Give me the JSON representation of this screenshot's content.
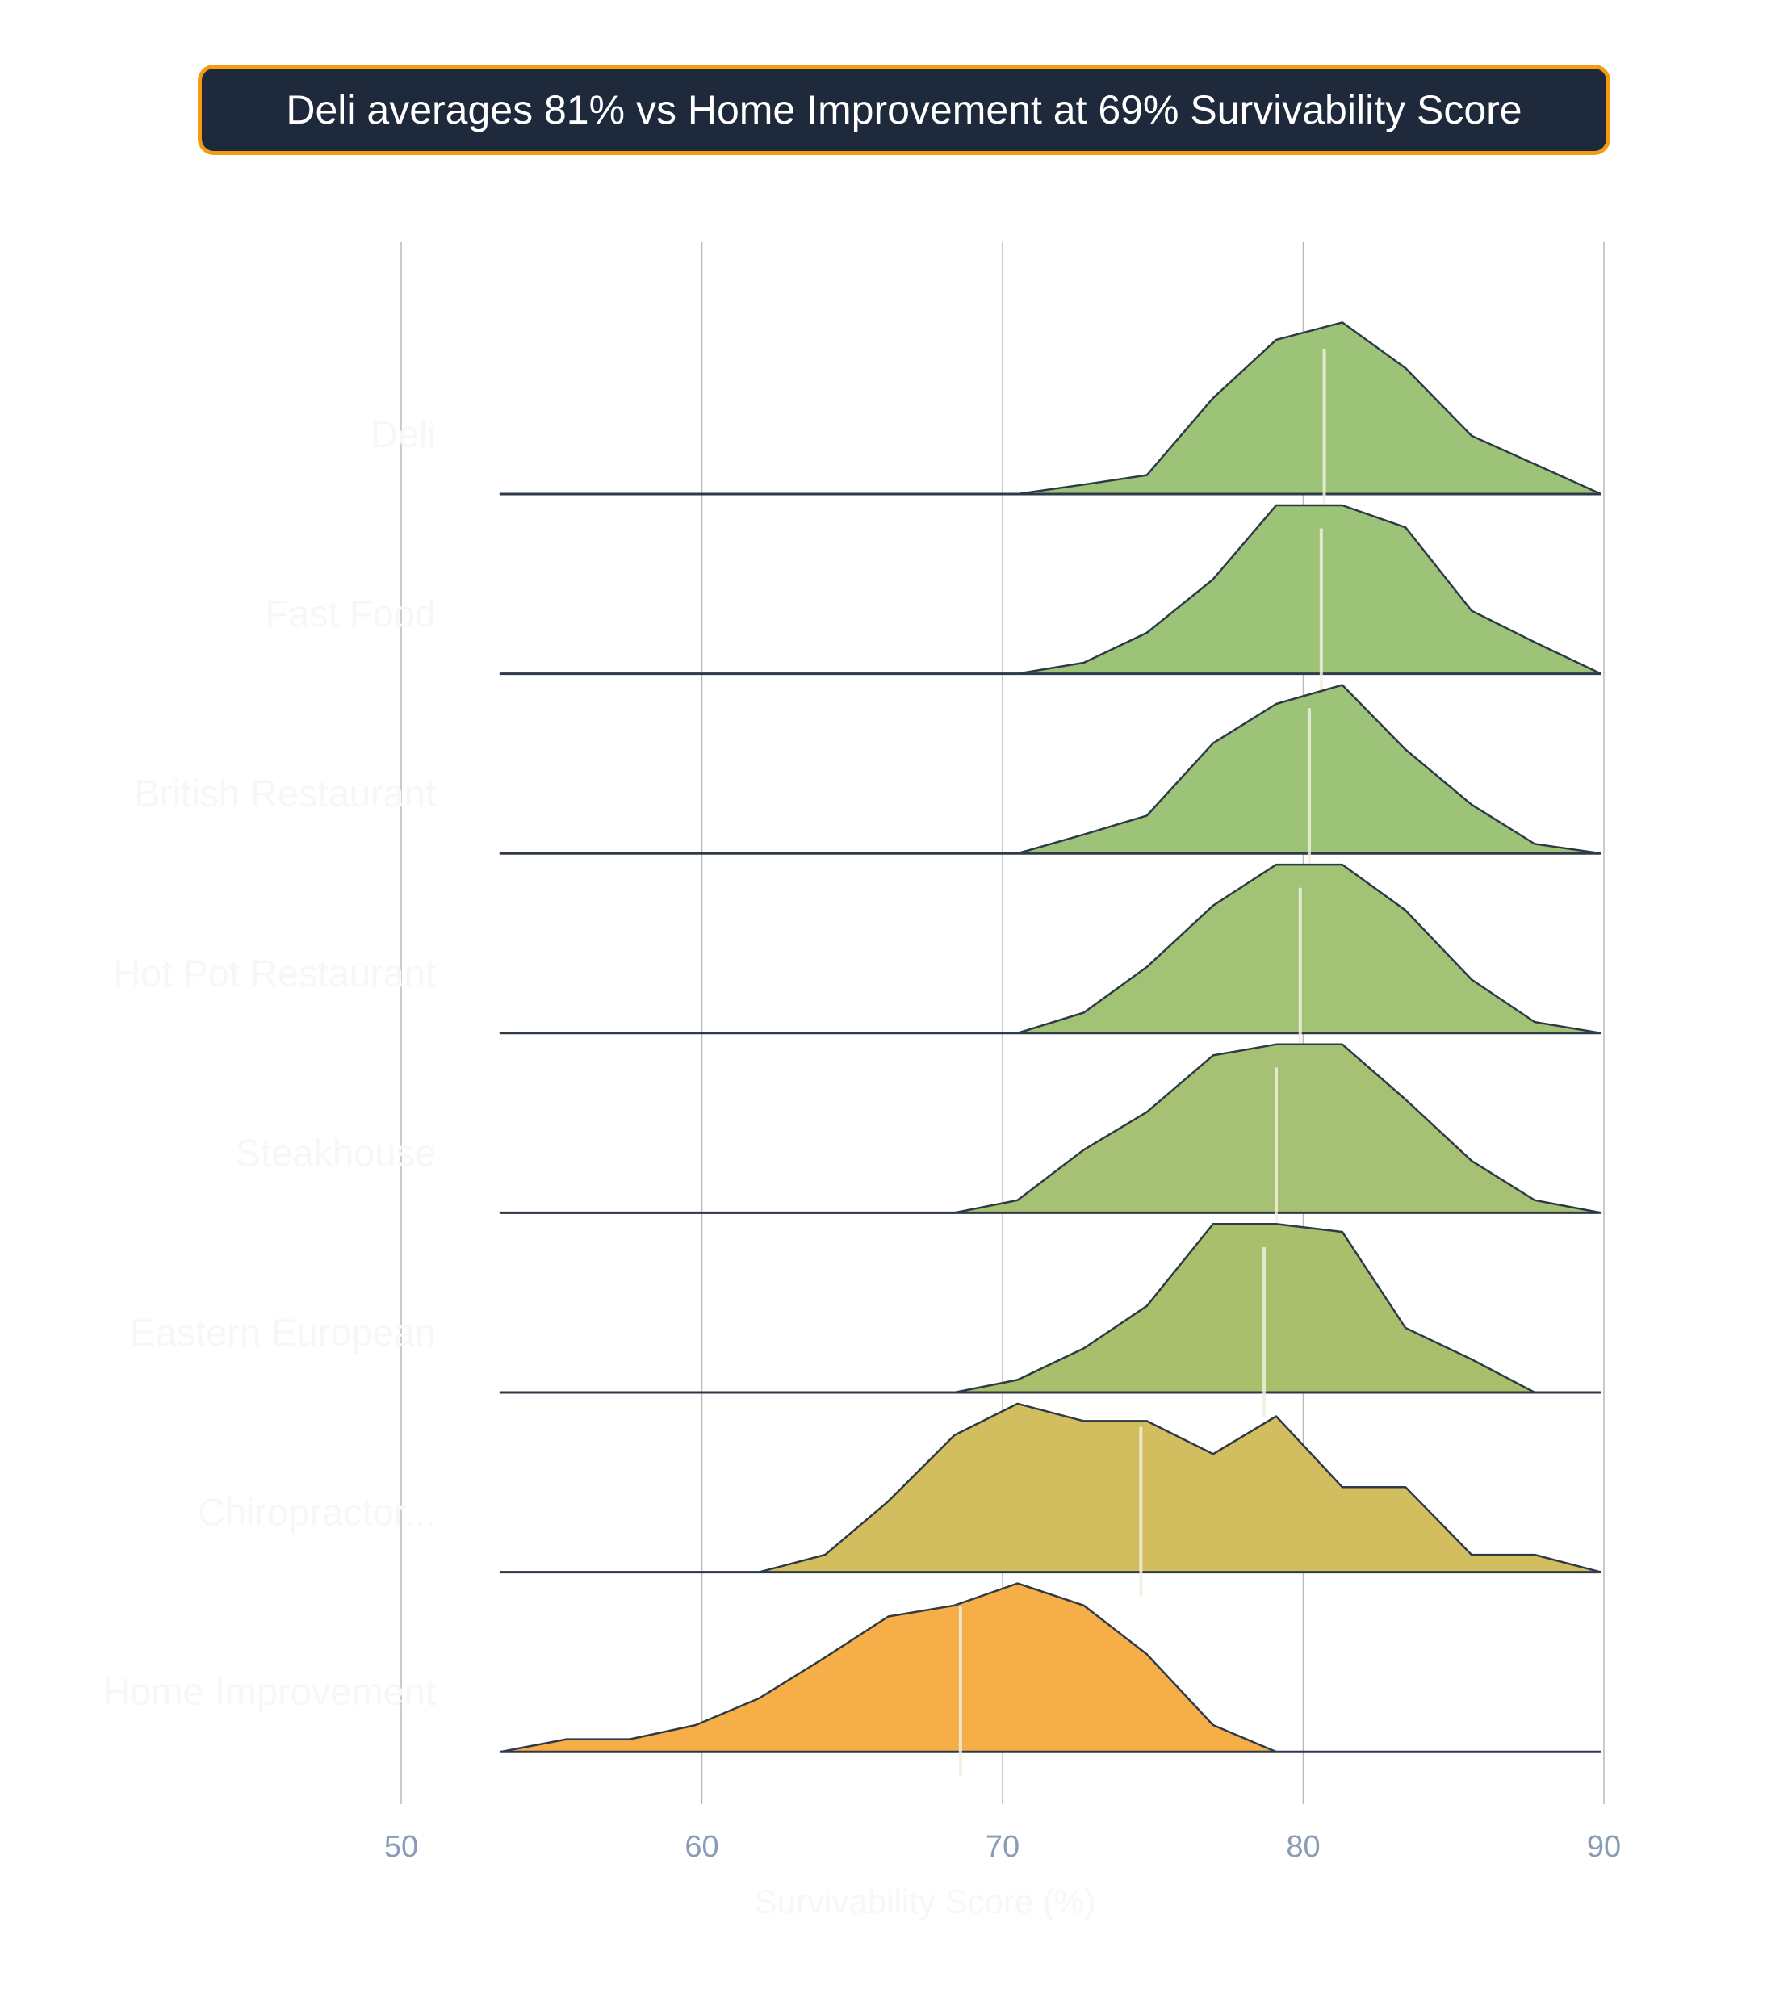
{
  "title": "Deli averages 81% vs Home Improvement at 69% Survivability Score",
  "colors": {
    "title_bg": "#1e293b",
    "title_border": "#f39c12",
    "outline": "#2f3a48",
    "median_line": "#f0f0e0",
    "grid": "#b8b8b8",
    "tick_text": "#8a9bb5"
  },
  "chart_data": {
    "type": "ridgeline",
    "xlabel": "Survivability Score (%)",
    "xlim": [
      50,
      90
    ],
    "xticks": [
      "50",
      "60",
      "70",
      "80",
      "90"
    ],
    "grid": true,
    "x_points": [
      53.3,
      55.5,
      57.6,
      59.8,
      61.9,
      64.1,
      66.2,
      68.4,
      70.5,
      72.7,
      74.8,
      77.0,
      79.1,
      81.3,
      83.4,
      85.6,
      87.7,
      89.9
    ],
    "series": [
      {
        "name": "Deli",
        "color": "#9dc379",
        "median": 80.7,
        "values": [
          0,
          0,
          0,
          0,
          0,
          0,
          0,
          0,
          0,
          0.06,
          0.12,
          0.61,
          0.98,
          1.09,
          0.8,
          0.37,
          0.19,
          0
        ]
      },
      {
        "name": "Fast Food",
        "color": "#9dc379",
        "median": 80.6,
        "values": [
          0,
          0,
          0,
          0,
          0,
          0,
          0,
          0,
          0,
          0.07,
          0.26,
          0.6,
          1.07,
          1.07,
          0.93,
          0.4,
          0.2,
          0
        ]
      },
      {
        "name": "British Restaurant",
        "color": "#9dc379",
        "median": 80.2,
        "values": [
          0,
          0,
          0,
          0,
          0,
          0,
          0,
          0,
          0,
          0.12,
          0.24,
          0.7,
          0.95,
          1.07,
          0.66,
          0.31,
          0.06,
          0
        ]
      },
      {
        "name": "Hot Pot Restaurant",
        "color": "#a2c276",
        "median": 79.9,
        "values": [
          0,
          0,
          0,
          0,
          0,
          0,
          0,
          0,
          0,
          0.13,
          0.42,
          0.81,
          1.07,
          1.07,
          0.78,
          0.34,
          0.07,
          0
        ]
      },
      {
        "name": "Steakhouse",
        "color": "#a6c173",
        "median": 79.1,
        "values": [
          0,
          0,
          0,
          0,
          0,
          0,
          0,
          0,
          0.08,
          0.4,
          0.64,
          1.0,
          1.07,
          1.07,
          0.72,
          0.33,
          0.08,
          0
        ]
      },
      {
        "name": "Eastern European",
        "color": "#a9bf6c",
        "median": 78.7,
        "values": [
          0,
          0,
          0,
          0,
          0,
          0,
          0,
          0,
          0.08,
          0.28,
          0.55,
          1.07,
          1.07,
          1.02,
          0.41,
          0.21,
          0,
          0
        ]
      },
      {
        "name": "Chiropractor...",
        "color": "#d3be5f",
        "median": 74.6,
        "values": [
          0,
          0,
          0,
          0,
          0,
          0.11,
          0.45,
          0.87,
          1.07,
          0.96,
          0.96,
          0.75,
          0.99,
          0.54,
          0.54,
          0.11,
          0.11,
          0
        ]
      },
      {
        "name": "Home Improvement",
        "color": "#f5ae48",
        "median": 68.6,
        "values": [
          0,
          0.08,
          0.08,
          0.17,
          0.34,
          0.6,
          0.86,
          0.93,
          1.07,
          0.93,
          0.62,
          0.17,
          0,
          0,
          0,
          0,
          0,
          0
        ]
      }
    ]
  }
}
